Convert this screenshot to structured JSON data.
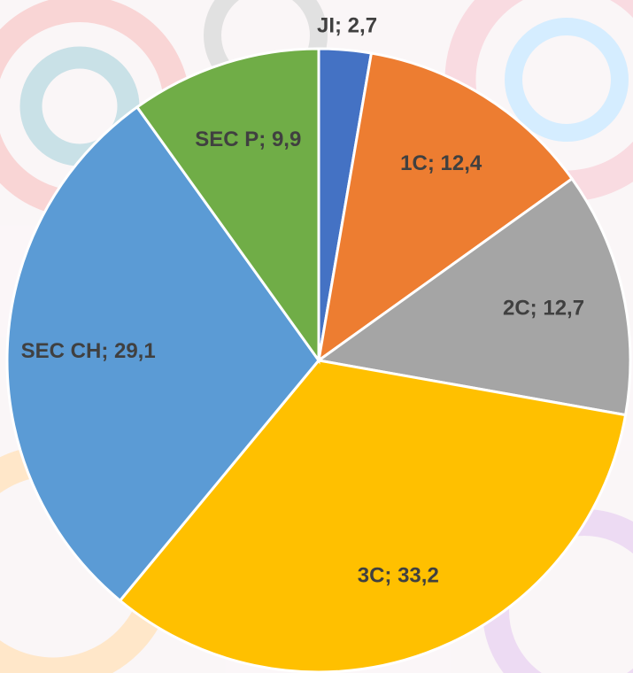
{
  "chart_data": {
    "type": "pie",
    "categories": [
      "JI",
      "1C",
      "2C",
      "3C",
      "SEC CH",
      "SEC P"
    ],
    "values": [
      2.7,
      12.4,
      12.7,
      33.2,
      29.1,
      9.9
    ],
    "value_labels": [
      "2,7",
      "12,4",
      "12,7",
      "33,2",
      "29,1",
      "9,9"
    ],
    "label_separator": "; ",
    "colors": [
      "#4472c4",
      "#ed7d31",
      "#a5a5a5",
      "#ffc000",
      "#5b9bd5",
      "#70ad47"
    ]
  }
}
